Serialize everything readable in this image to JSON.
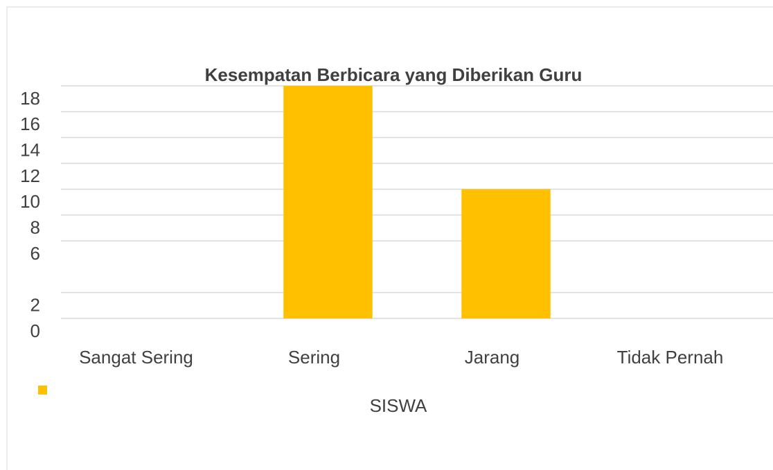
{
  "chart_data": {
    "type": "bar",
    "title": "Kesempatan Berbicara yang Diberikan Guru",
    "categories": [
      "Sangat Sering",
      "Sering",
      "Jarang",
      "Tidak Pernah"
    ],
    "series": [
      {
        "name": "SISWA",
        "color": "#ffc000",
        "values": [
          0,
          18,
          10,
          0
        ]
      }
    ],
    "ylim": [
      0,
      18
    ],
    "yticks": [
      0,
      2,
      6,
      8,
      10,
      12,
      14,
      16,
      18
    ],
    "grid": true,
    "legend": "bottom"
  }
}
